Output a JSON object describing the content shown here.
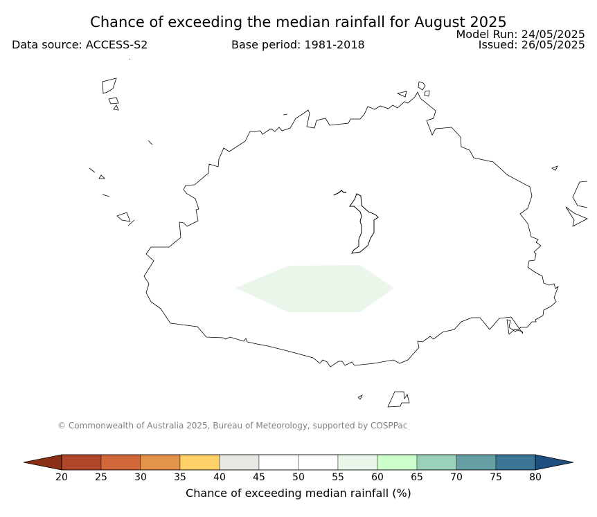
{
  "header": {
    "title": "Chance of exceeding the median rainfall for August 2025",
    "data_source": "Data source: ACCESS-S2",
    "base_period": "Base period: 1981-2018",
    "model_run": "Model Run: 24/05/2025",
    "issued": "Issued: 26/05/2025"
  },
  "map": {
    "shaded_region_category": "55-60",
    "shaded_region_color": "#eaf6ea",
    "coastline_color": "#000000"
  },
  "copyright": "© Commonwealth of Australia 2025, Bureau of Meteorology, supported by COSPPac",
  "colorbar": {
    "label": "Chance of exceeding median rainfall (%)",
    "ticks": [
      "20",
      "25",
      "30",
      "35",
      "40",
      "45",
      "50",
      "55",
      "60",
      "65",
      "70",
      "75",
      "80"
    ],
    "low_extend_color": "#8b2e16",
    "high_extend_color": "#1d4f7f",
    "colors": [
      "#b0472a",
      "#d0683a",
      "#e3944a",
      "#fdd068",
      "#e8e8e3",
      "#ffffff",
      "#ffffff",
      "#eaf6ea",
      "#ccffcc",
      "#9bd1b8",
      "#679ea3",
      "#3d7595"
    ]
  }
}
